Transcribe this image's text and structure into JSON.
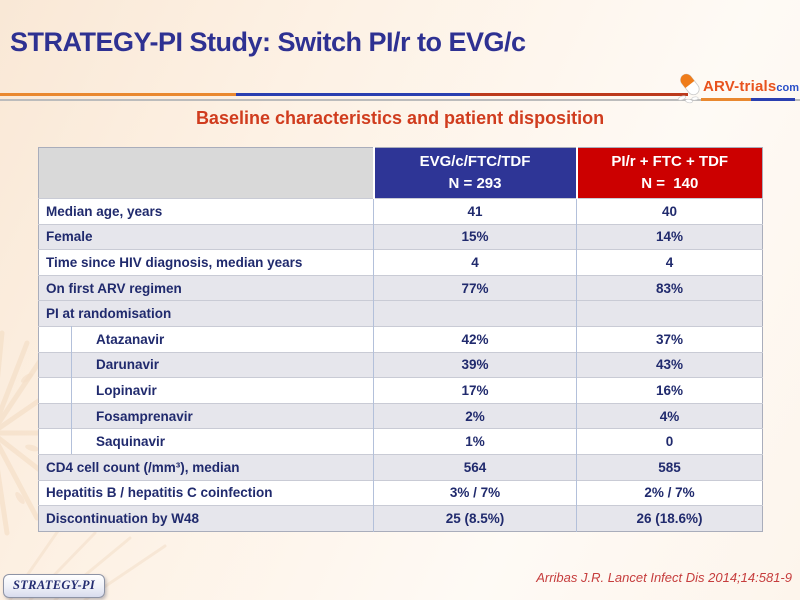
{
  "header": {
    "title": "STRATEGY-PI Study: Switch PI/r to EVG/c",
    "subtitle": "Baseline characteristics and patient disposition",
    "logo": {
      "text_main": "ARV-trials",
      "text_suffix": "com"
    }
  },
  "table": {
    "columns": [
      {
        "id": "evg",
        "line1": "EVG/c/FTC/TDF",
        "line2": "N = 293"
      },
      {
        "id": "pir",
        "line1": "PI/r + FTC + TDF",
        "line2": "N =  140"
      }
    ],
    "rows": [
      {
        "label": "Median age, years",
        "evg": "41",
        "pir": "40",
        "indent": false,
        "shaded": false
      },
      {
        "label": "Female",
        "evg": "15%",
        "pir": "14%",
        "indent": false,
        "shaded": true
      },
      {
        "label": "Time since HIV diagnosis, median years",
        "evg": "4",
        "pir": "4",
        "indent": false,
        "shaded": false
      },
      {
        "label": "On first ARV regimen",
        "evg": "77%",
        "pir": "83%",
        "indent": false,
        "shaded": true
      },
      {
        "label": "PI at randomisation",
        "evg": "",
        "pir": "",
        "indent": false,
        "shaded": true
      },
      {
        "label": "Atazanavir",
        "evg": "42%",
        "pir": "37%",
        "indent": true,
        "shaded": false
      },
      {
        "label": "Darunavir",
        "evg": "39%",
        "pir": "43%",
        "indent": true,
        "shaded": true
      },
      {
        "label": "Lopinavir",
        "evg": "17%",
        "pir": "16%",
        "indent": true,
        "shaded": false
      },
      {
        "label": "Fosamprenavir",
        "evg": "2%",
        "pir": "4%",
        "indent": true,
        "shaded": true
      },
      {
        "label": "Saquinavir",
        "evg": "1%",
        "pir": "0",
        "indent": true,
        "shaded": false
      },
      {
        "label": "CD4 cell count (/mm³), median",
        "evg": "564",
        "pir": "585",
        "indent": false,
        "shaded": true
      },
      {
        "label": "Hepatitis B / hepatitis C coinfection",
        "evg": "3% / 7%",
        "pir": "2% / 7%",
        "indent": false,
        "shaded": false
      },
      {
        "label": "Discontinuation by W48",
        "evg": "25 (8.5%)",
        "pir": "26 (18.6%)",
        "indent": false,
        "shaded": true
      }
    ]
  },
  "footer": {
    "badge": "STRATEGY-PI",
    "citation": "Arribas J.R. Lancet Infect Dis 2014;14:581-9"
  },
  "colors": {
    "title_navy": "#2e3192",
    "subtitle_red": "#d03c1e",
    "evg_column_blue": "#2e3596",
    "pir_column_red": "#cc0000",
    "table_text_navy": "#202a6d",
    "shaded_row": "#e6e6ec",
    "divider_orange": "#e9882f",
    "divider_blue": "#2a3fb0",
    "divider_red": "#bc3a1c",
    "citation_red": "#c63d3d"
  }
}
